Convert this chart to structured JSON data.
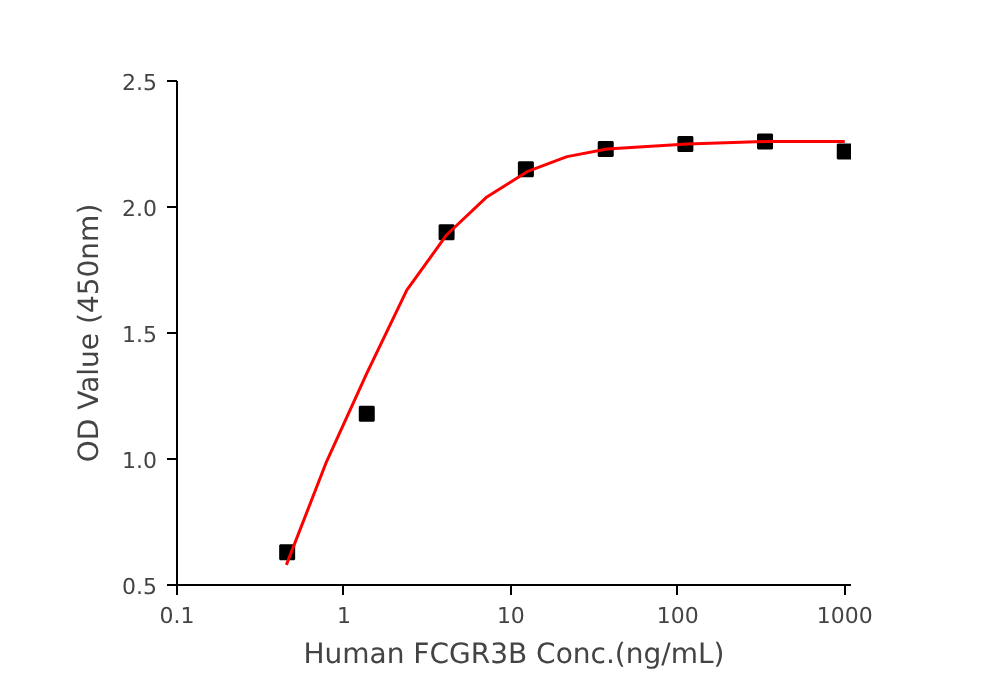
{
  "chart_data": {
    "type": "scatter",
    "xlabel": "Human FCGR3B Conc.(ng/mL)",
    "ylabel": "OD Value (450nm)",
    "log": "x",
    "xlim": [
      0.1,
      1090
    ],
    "ylim": [
      0.5,
      2.5
    ],
    "xticks": [
      0.1,
      1,
      10,
      100,
      1000
    ],
    "yticks": [
      {
        "value": 0.5,
        "label": "0.5"
      },
      {
        "value": 1.0,
        "label": "1.0"
      },
      {
        "value": 1.5,
        "label": "1.5"
      },
      {
        "value": 2.0,
        "label": "2.0"
      },
      {
        "value": 2.5,
        "label": "2.5"
      }
    ],
    "grid": false,
    "series": [
      {
        "marker": "square",
        "color": "#000000",
        "x": [
          0.457,
          1.37,
          4.12,
          12.3,
          37.0,
          111,
          333,
          1000
        ],
        "values": [
          0.63,
          1.18,
          1.9,
          2.15,
          2.23,
          2.25,
          2.26,
          2.22
        ]
      },
      {
        "type": "line",
        "marker": "none",
        "line_style": "solid",
        "color": "#ff0000",
        "x": [
          0.452,
          0.787,
          1.37,
          2.38,
          4.13,
          7.18,
          12.5,
          21.7,
          37.7,
          65.5,
          114,
          346,
          1000
        ],
        "values": [
          0.58,
          0.99,
          1.34,
          1.67,
          1.89,
          2.04,
          2.14,
          2.2,
          2.23,
          2.24,
          2.25,
          2.26,
          2.26
        ]
      }
    ]
  }
}
